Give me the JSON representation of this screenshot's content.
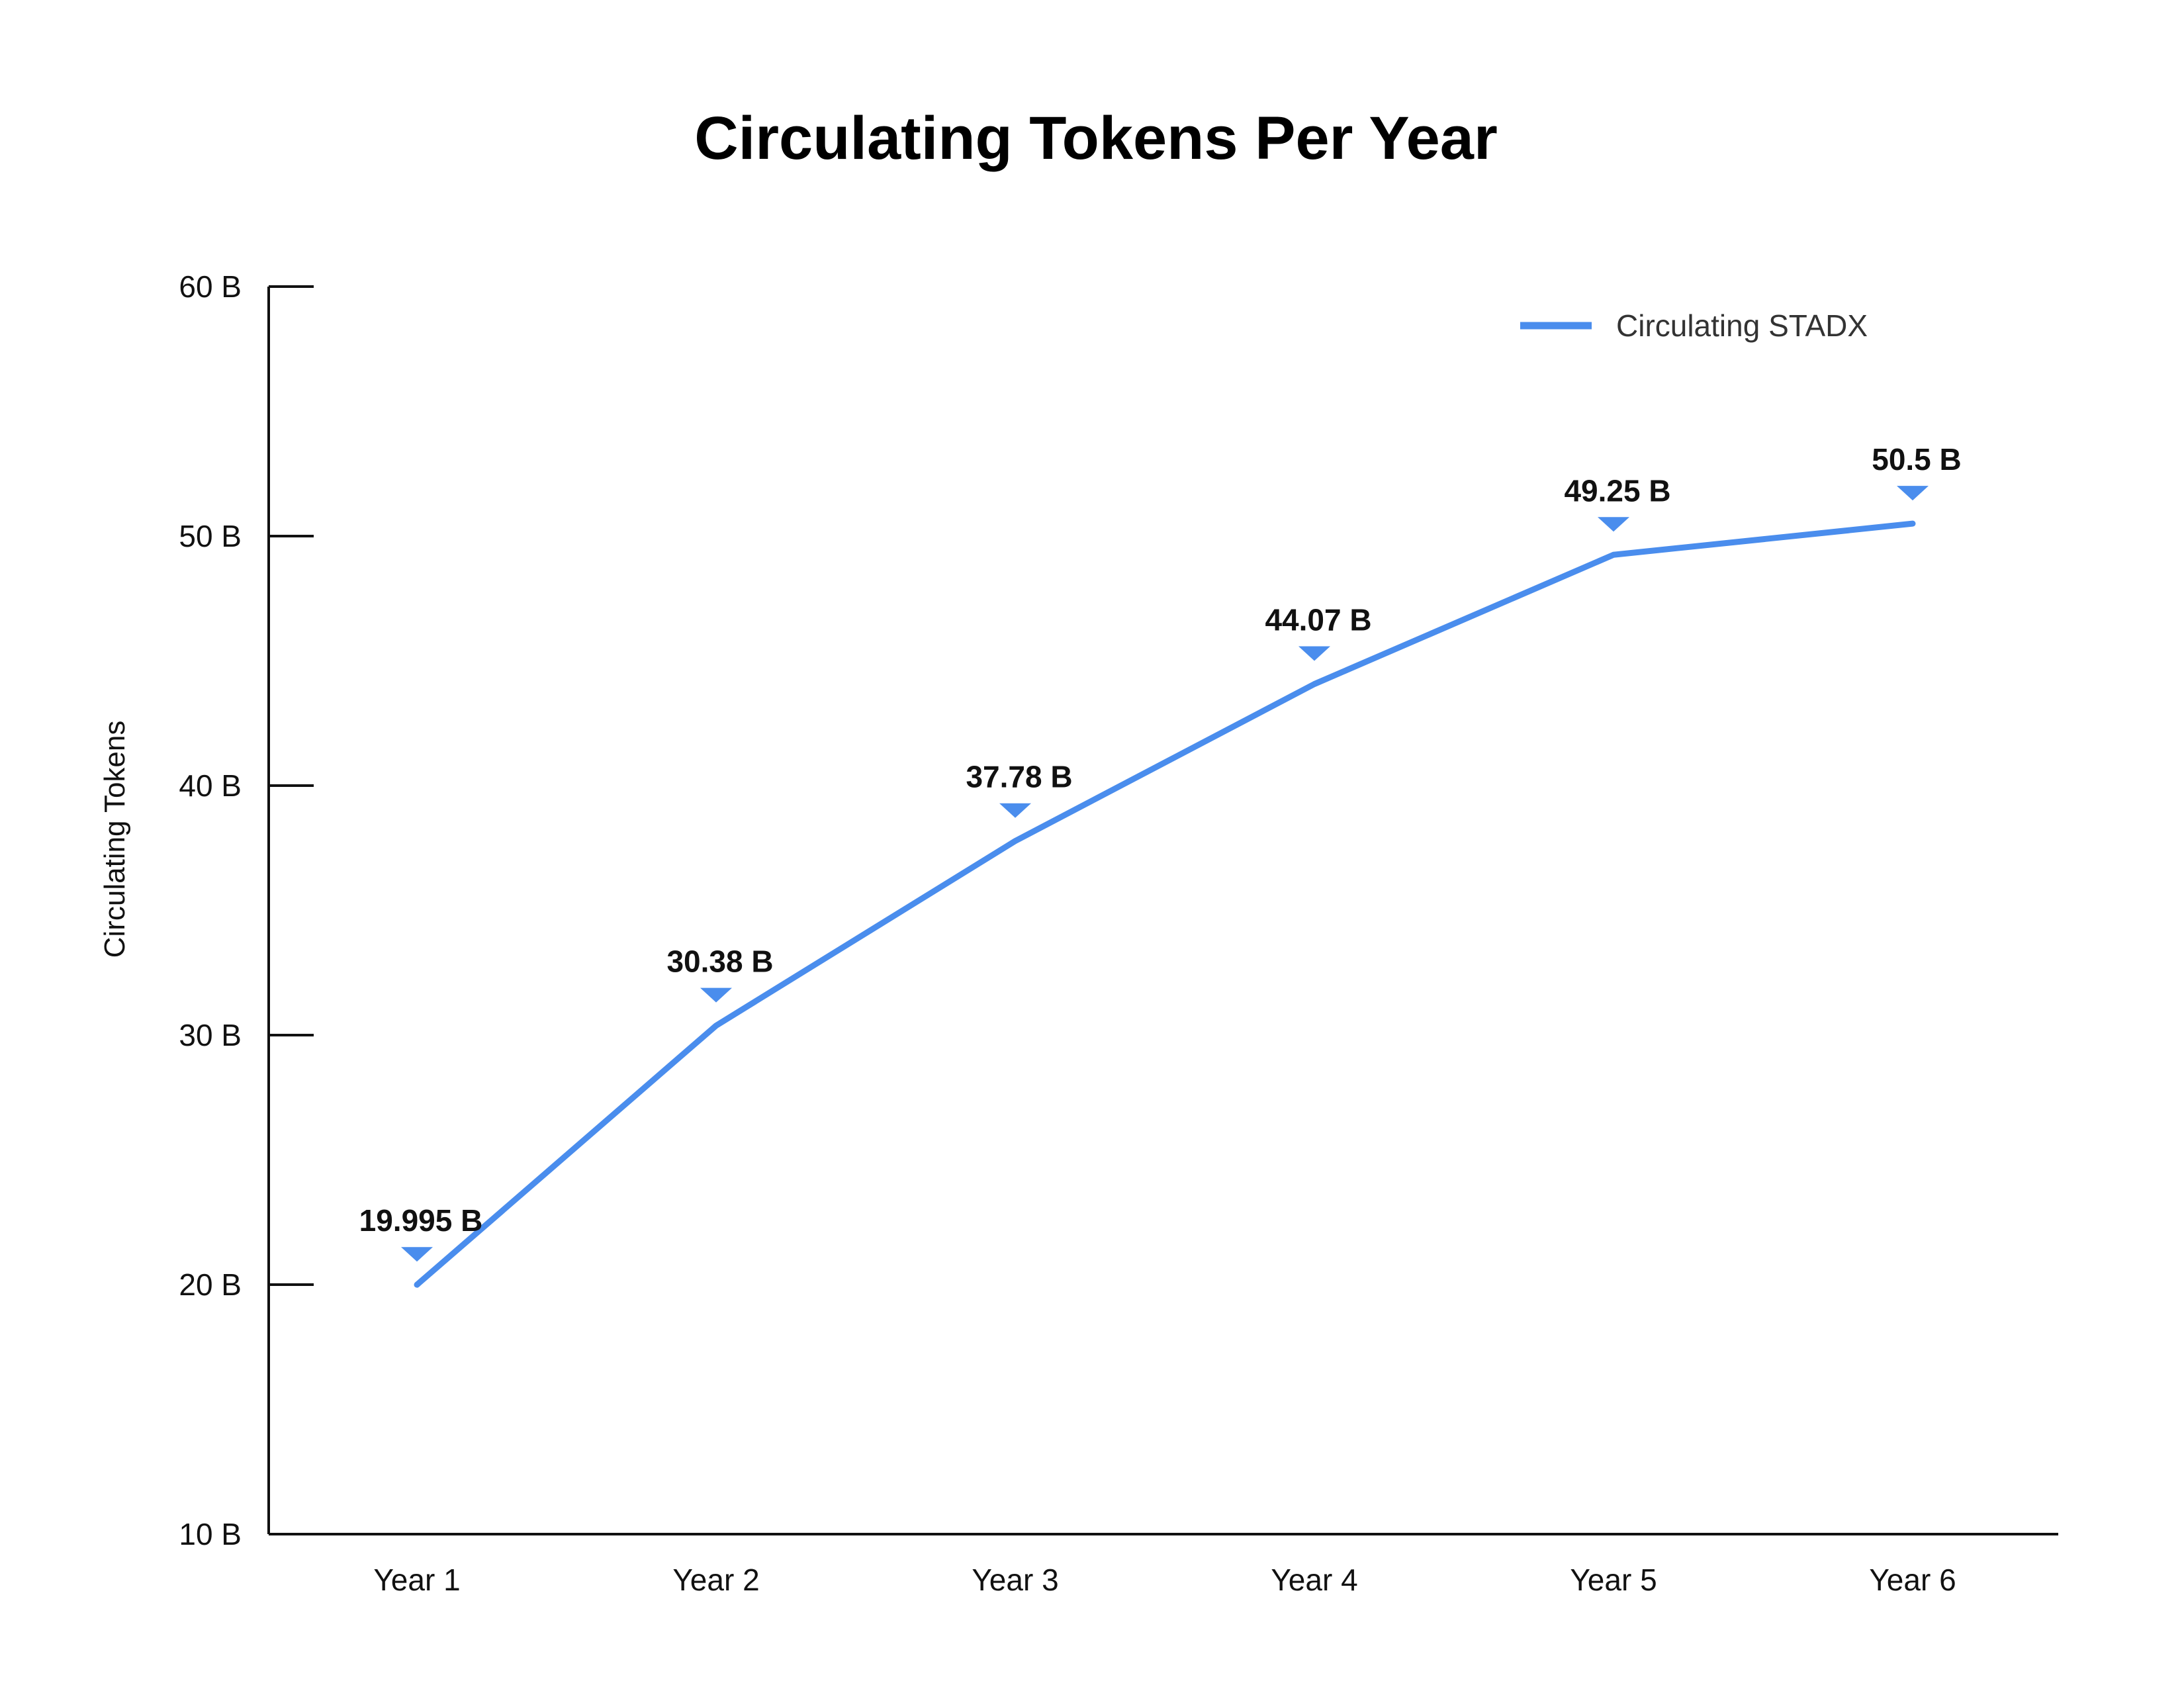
{
  "chart_data": {
    "type": "line",
    "title": "Circulating Tokens Per Year",
    "xlabel": "",
    "ylabel": "Circulating Tokens",
    "categories": [
      "Year 1",
      "Year 2",
      "Year 3",
      "Year 4",
      "Year 5",
      "Year 6"
    ],
    "series": [
      {
        "name": "Circulating STADX",
        "values": [
          19.995,
          30.38,
          37.78,
          44.07,
          49.25,
          50.5
        ],
        "data_labels": [
          "19.995 B",
          "30.38 B",
          "37.78 B",
          "44.07 B",
          "49.25 B",
          "50.5 B"
        ]
      }
    ],
    "ylim": [
      10,
      60
    ],
    "yticks": [
      10,
      20,
      30,
      40,
      50,
      60
    ],
    "ytick_labels": [
      "10 B",
      "20 B",
      "30 B",
      "40 B",
      "50 B",
      "60 B"
    ],
    "grid": false,
    "legend_position": "top-right",
    "colors": {
      "series": "#4a8ded",
      "axis": "#111111",
      "text": "#111111"
    }
  }
}
